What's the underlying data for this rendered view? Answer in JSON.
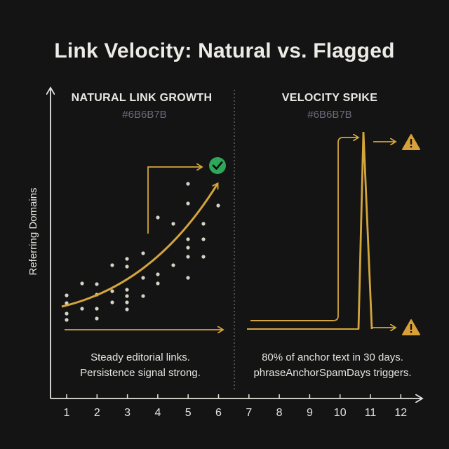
{
  "title": "Link Velocity: Natural vs. Flagged",
  "y_axis_label": "Referring Domains",
  "x_ticks": [
    "1",
    "2",
    "3",
    "4",
    "5",
    "6",
    "7",
    "8",
    "9",
    "10",
    "11",
    "12"
  ],
  "panels": {
    "natural": {
      "title": "NATURAL LINK GROWTH",
      "subtitle": "#6B6B7B",
      "caption_line1": "Steady editorial links.",
      "caption_line2": "Persistence signal strong.",
      "status_icon": "check-icon"
    },
    "spike": {
      "title": "VELOCITY SPIKE",
      "subtitle": "#6B6B7B",
      "caption_line1": "80% of anchor text in 30 days.",
      "caption_line2": "phraseAnchorSpamDays triggers.",
      "status_icon": "warning-icon"
    }
  },
  "colors": {
    "background": "#141414",
    "accent": "#d4a53c",
    "text": "#e4e3de",
    "subtle": "#6b6b7b",
    "check": "#2fa75a",
    "warning": "#d9a038"
  }
}
